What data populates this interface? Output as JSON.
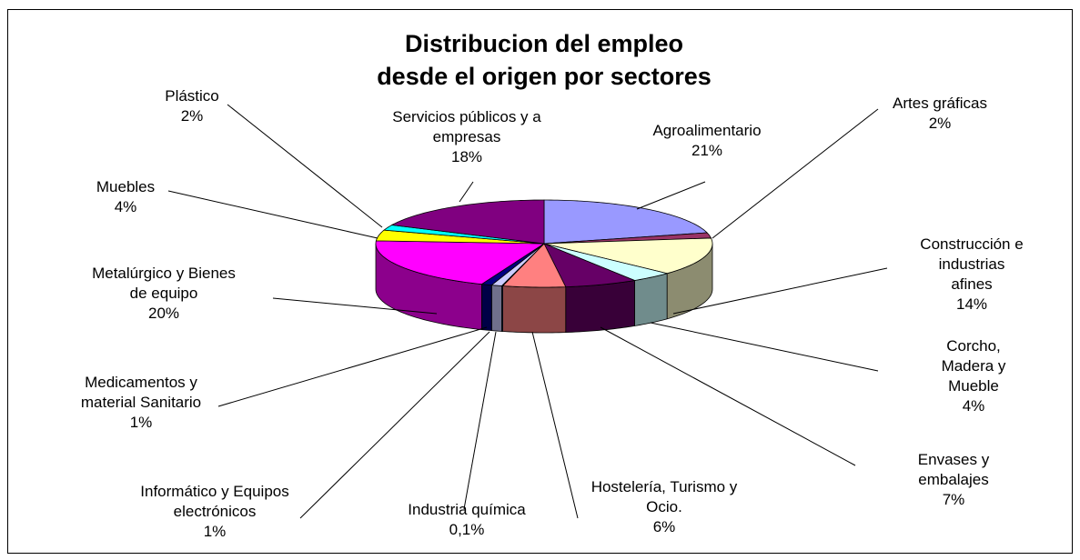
{
  "chart_data": {
    "type": "pie3d",
    "title": "Distribucion del empleo\ndesde el origen por sectores",
    "categories": [
      "Agroalimentario",
      "Artes gráficas",
      "Construcción e\nindustrias afines",
      "Corcho, Madera y\nMueble",
      "Envases y embalajes",
      "Hostelería, Turismo y\nOcio.",
      "Industria química",
      "Informático y Equipos\nelectrónicos",
      "Medicamentos y\nmaterial Sanitario",
      "Metalúrgico y Bienes\nde equipo",
      "Muebles",
      "Plástico",
      "Servicios públicos y a\nempresas"
    ],
    "values": [
      21,
      2,
      14,
      4,
      7,
      6,
      0.1,
      1,
      1,
      20,
      4,
      2,
      18
    ],
    "value_labels": [
      "21%",
      "2%",
      "14%",
      "4%",
      "7%",
      "6%",
      "0,1%",
      "1%",
      "1%",
      "20%",
      "4%",
      "2%",
      "18%"
    ],
    "colors": [
      "#9999ff",
      "#993366",
      "#ffffcc",
      "#ccffff",
      "#660066",
      "#ff8080",
      "#0066cc",
      "#ccccff",
      "#000080",
      "#ff00ff",
      "#ffff00",
      "#00ffff",
      "#800080"
    ]
  }
}
